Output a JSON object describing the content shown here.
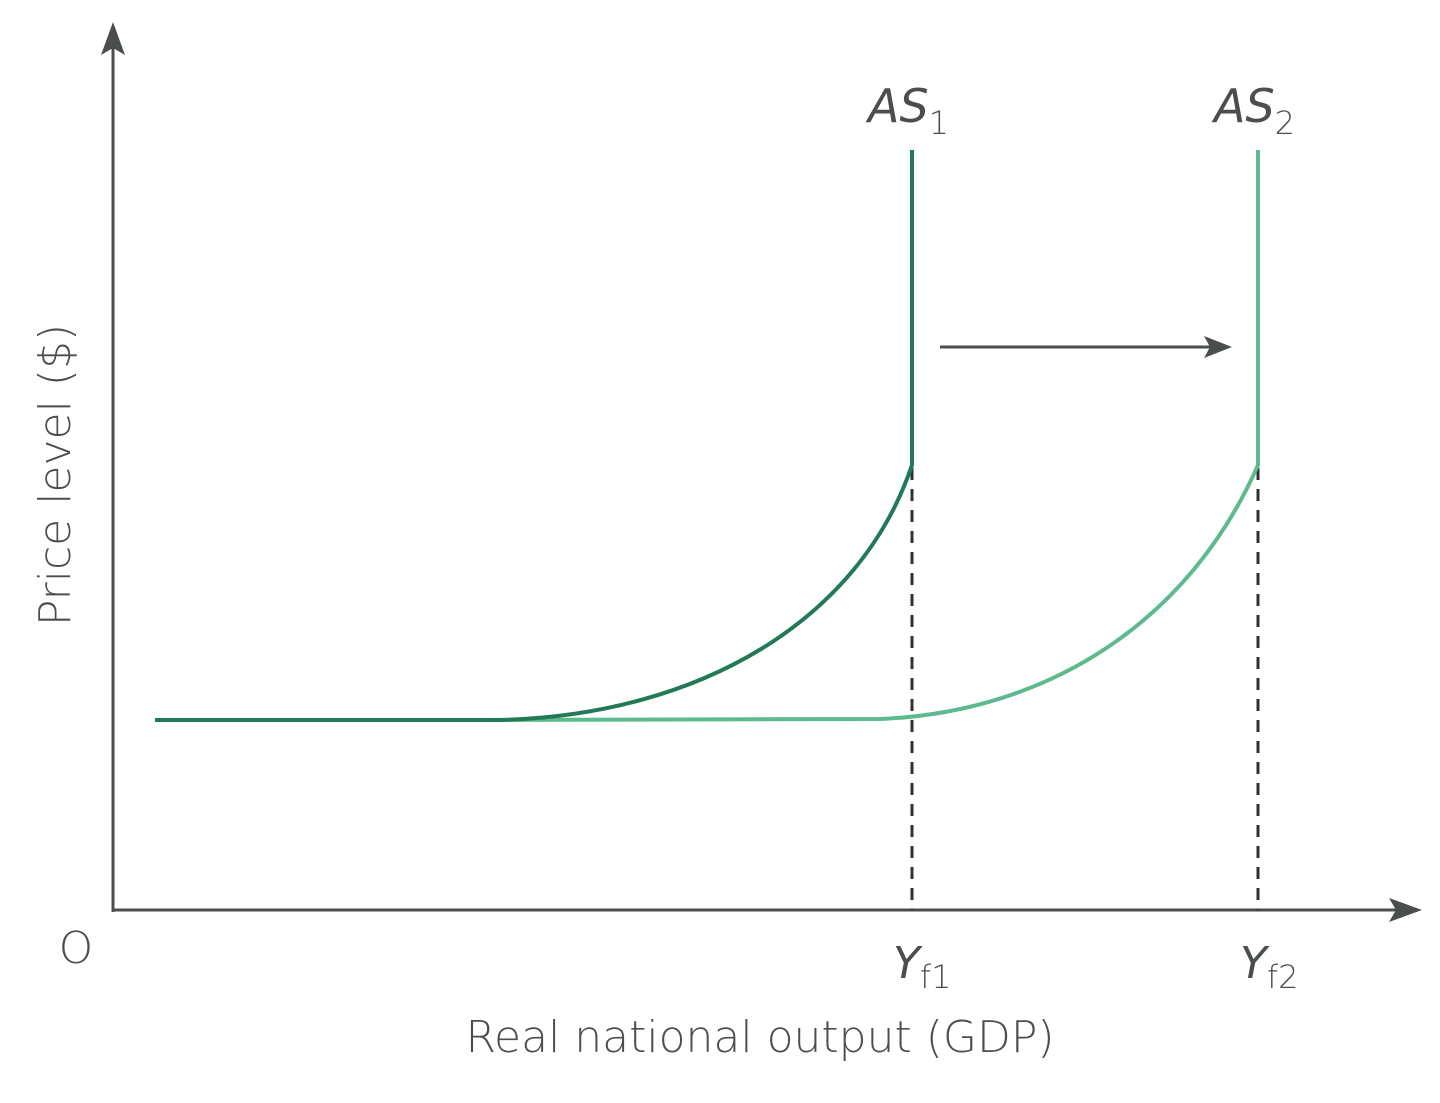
{
  "axes": {
    "y_label": "Price level ($)",
    "x_label": "Real national output (GDP)",
    "origin": "O"
  },
  "curves": [
    {
      "label": "AS",
      "subscript": "1"
    },
    {
      "label": "AS",
      "subscript": "2"
    }
  ],
  "output_levels": [
    {
      "label": "Y",
      "subscript": "f1"
    },
    {
      "label": "Y",
      "subscript": "f2"
    }
  ]
}
